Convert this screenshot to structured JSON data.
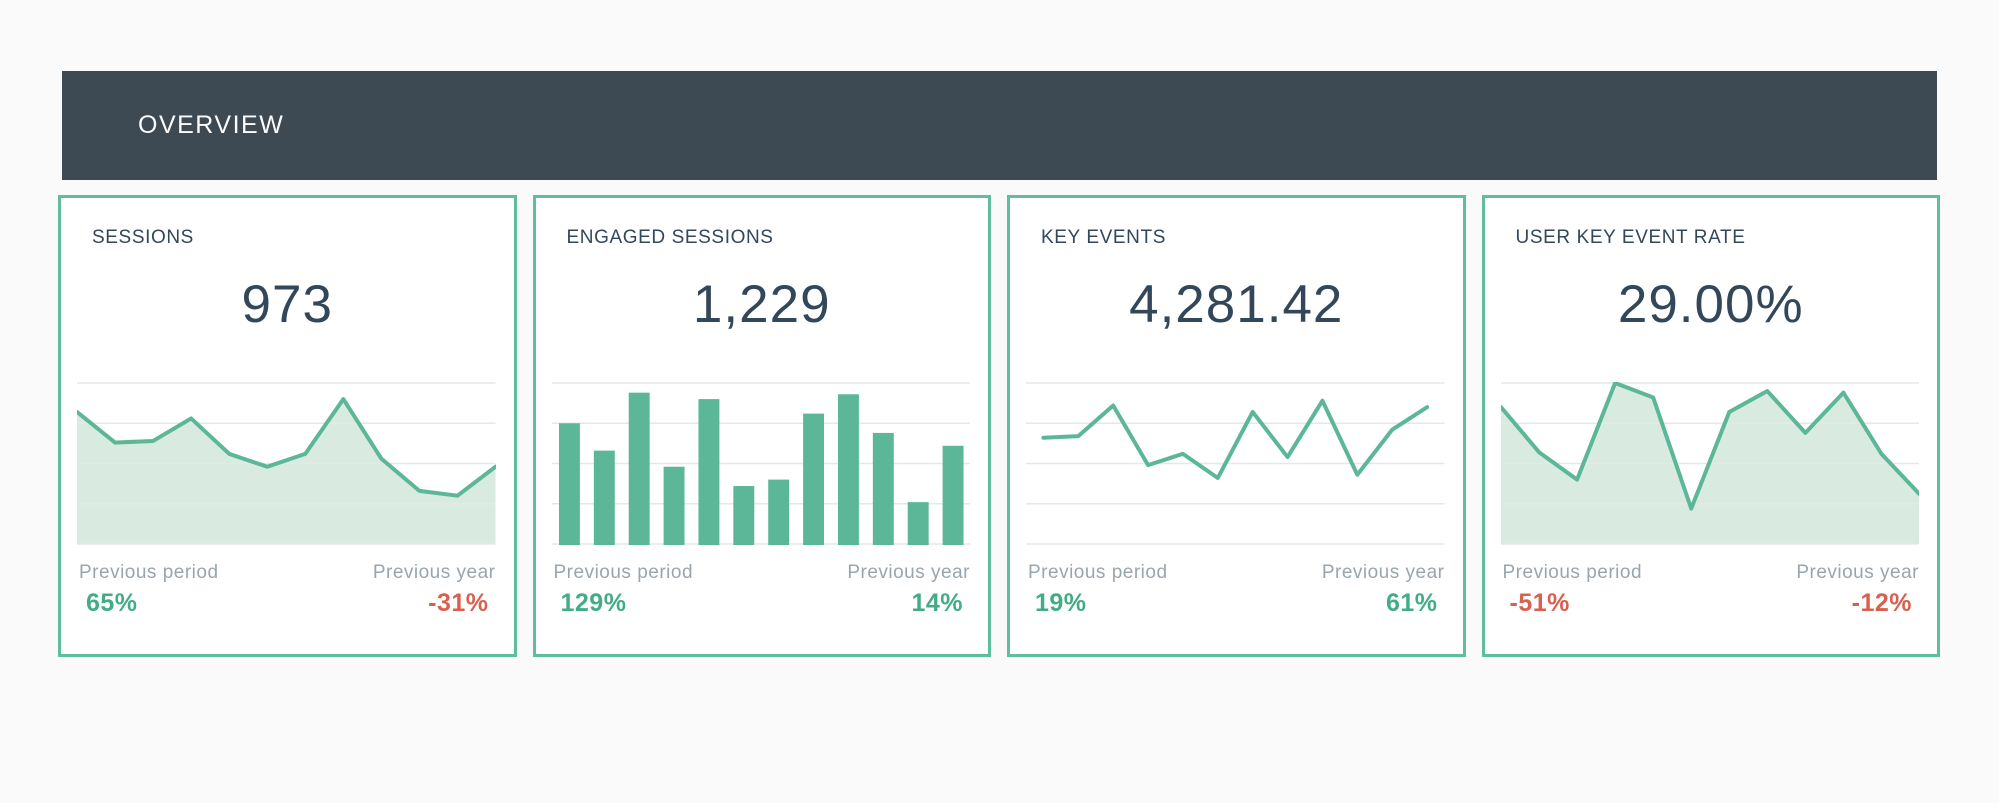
{
  "page": {
    "background": "#fafafa"
  },
  "colors": {
    "page_bg": "#fafafa",
    "header_bg": "#3d4a54",
    "header_text": "#fcfcfc",
    "card_border": "#5fbda0",
    "card_bg": "#ffffff",
    "accent_green": "#5bb797",
    "area_fill": "#d9eae1",
    "gridline": "#e5e8e9",
    "title_text": "#33475b",
    "value_text": "#33475b",
    "label_gray": "#99a5ad",
    "positive_green": "#42ad85",
    "negative_red": "#d95f4e"
  },
  "header": {
    "title": "OVERVIEW"
  },
  "cards": [
    {
      "title": "SESSIONS",
      "value": "973",
      "previous_period_label": "Previous period",
      "previous_period_value": "65%",
      "previous_period_direction": "positive",
      "previous_year_label": "Previous year",
      "previous_year_value": "-31%",
      "previous_year_direction": "negative"
    },
    {
      "title": "ENGAGED SESSIONS",
      "value": "1,229",
      "previous_period_label": "Previous period",
      "previous_period_value": "129%",
      "previous_period_direction": "positive",
      "previous_year_label": "Previous year",
      "previous_year_value": "14%",
      "previous_year_direction": "positive"
    },
    {
      "title": "KEY EVENTS",
      "value": "4,281.42",
      "previous_period_label": "Previous period",
      "previous_period_value": "19%",
      "previous_period_direction": "positive",
      "previous_year_label": "Previous year",
      "previous_year_value": "61%",
      "previous_year_direction": "positive"
    },
    {
      "title": "USER KEY EVENT RATE",
      "value": "29.00%",
      "previous_period_label": "Previous period",
      "previous_period_value": "-51%",
      "previous_period_direction": "negative",
      "previous_year_label": "Previous year",
      "previous_year_value": "-12%",
      "previous_year_direction": "negative"
    }
  ],
  "chart_data": [
    {
      "type": "area",
      "title": "SESSIONS",
      "headline_value": "973",
      "x": [
        1,
        2,
        3,
        4,
        5,
        6,
        7,
        8,
        9,
        10,
        11,
        12
      ],
      "values": [
        82,
        63,
        64,
        78,
        56,
        48,
        56,
        90,
        53,
        33,
        30,
        48
      ],
      "ylim": [
        0,
        100
      ],
      "grid": true,
      "gridline_count": 5,
      "legend": "none",
      "axis_labels": "none"
    },
    {
      "type": "bar",
      "title": "ENGAGED SESSIONS",
      "headline_value": "1,229",
      "x": [
        1,
        2,
        3,
        4,
        5,
        6,
        7,
        8,
        9,
        10,
        11,
        12
      ],
      "values": [
        75,
        58,
        94,
        48,
        90,
        36,
        40,
        81,
        93,
        69,
        26,
        61
      ],
      "ylim": [
        0,
        100
      ],
      "grid": true,
      "gridline_count": 5,
      "legend": "none",
      "axis_labels": "none"
    },
    {
      "type": "line",
      "title": "KEY EVENTS",
      "headline_value": "4,281.42",
      "x": [
        1,
        2,
        3,
        4,
        5,
        6,
        7,
        8,
        9,
        10,
        11,
        12
      ],
      "values": [
        66,
        67,
        86,
        49,
        56,
        41,
        82,
        54,
        89,
        43,
        71,
        85
      ],
      "ylim": [
        0,
        100
      ],
      "grid": true,
      "gridline_count": 5,
      "legend": "none",
      "axis_labels": "none"
    },
    {
      "type": "area",
      "title": "USER KEY EVENT RATE",
      "headline_value": "29.00%",
      "x": [
        1,
        2,
        3,
        4,
        5,
        6,
        7,
        8,
        9,
        10,
        11,
        12
      ],
      "values": [
        85,
        57,
        40,
        100,
        91,
        22,
        82,
        95,
        69,
        94,
        56,
        31
      ],
      "ylim": [
        0,
        100
      ],
      "grid": true,
      "gridline_count": 5,
      "legend": "none",
      "axis_labels": "none"
    }
  ]
}
